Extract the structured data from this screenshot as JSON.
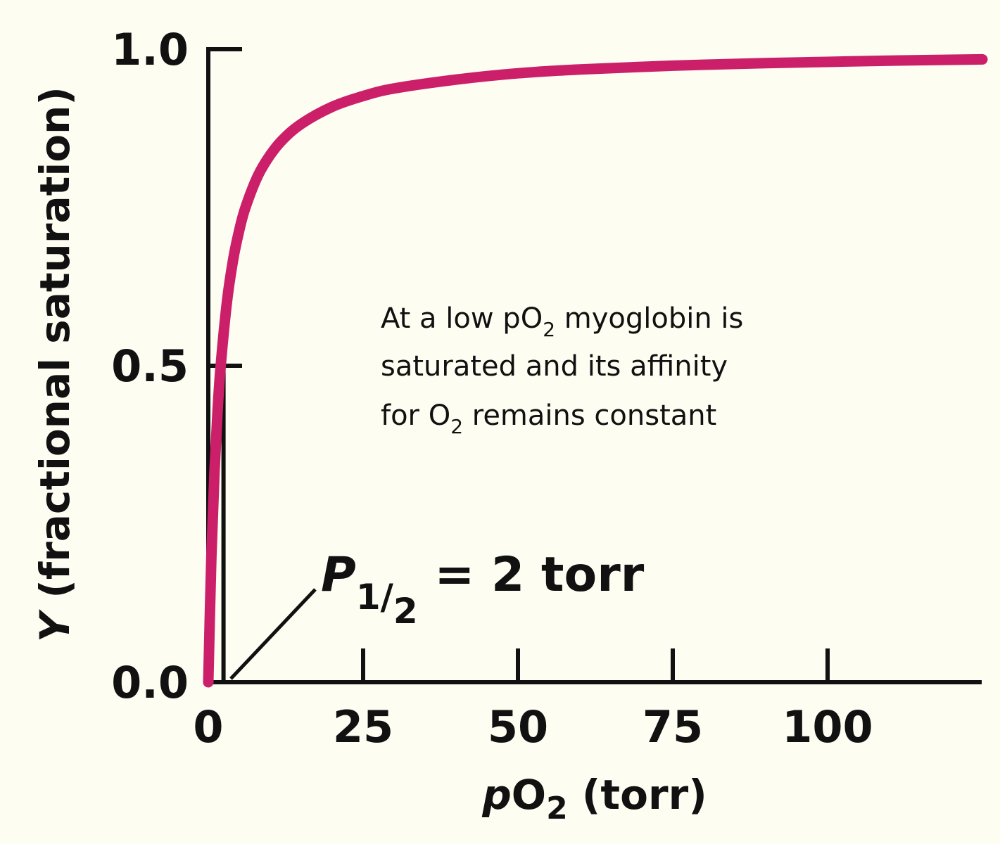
{
  "chart_data": {
    "type": "line",
    "title": "",
    "xlabel": {
      "italic": "p",
      "main": "O",
      "sub": "2",
      "rest": " (torr)"
    },
    "ylabel": {
      "italic": "Y",
      "rest": " (fractional saturation)"
    },
    "xlim": [
      0,
      125
    ],
    "ylim": [
      0,
      1.0
    ],
    "x_ticks": [
      {
        "value": 0,
        "label": "0"
      },
      {
        "value": 25,
        "label": "25"
      },
      {
        "value": 50,
        "label": "50"
      },
      {
        "value": 75,
        "label": "75"
      },
      {
        "value": 100,
        "label": "100"
      }
    ],
    "y_ticks": [
      {
        "value": 0,
        "label": "0.0"
      },
      {
        "value": 0.5,
        "label": "0.5"
      },
      {
        "value": 1.0,
        "label": "1.0"
      }
    ],
    "grid": false,
    "series": [
      {
        "color": "#cc1f6a",
        "x": [
          0,
          0.5,
          1,
          1.5,
          2,
          3,
          4,
          5,
          6,
          8,
          10,
          12,
          15,
          20,
          25,
          30,
          40,
          50,
          60,
          75,
          90,
          100,
          110,
          125
        ],
        "y": [
          0,
          0.2,
          0.333,
          0.429,
          0.5,
          0.6,
          0.667,
          0.714,
          0.75,
          0.8,
          0.833,
          0.857,
          0.882,
          0.909,
          0.926,
          0.938,
          0.952,
          0.962,
          0.968,
          0.974,
          0.978,
          0.98,
          0.982,
          0.984
        ]
      }
    ],
    "half_saturation": {
      "x": 2,
      "y": 0.5
    },
    "annotations": {
      "note_line1": {
        "a": "At a low pO",
        "sub": "2",
        "b": " myoglobin is"
      },
      "note_line2": "saturated and its affinity",
      "note_line3": {
        "a": "for O",
        "sub": "2",
        "b": " remains constant"
      },
      "p_half": {
        "main": "P",
        "sub_num": "1",
        "sub_den": "2",
        "rest": " = 2 torr"
      }
    }
  }
}
